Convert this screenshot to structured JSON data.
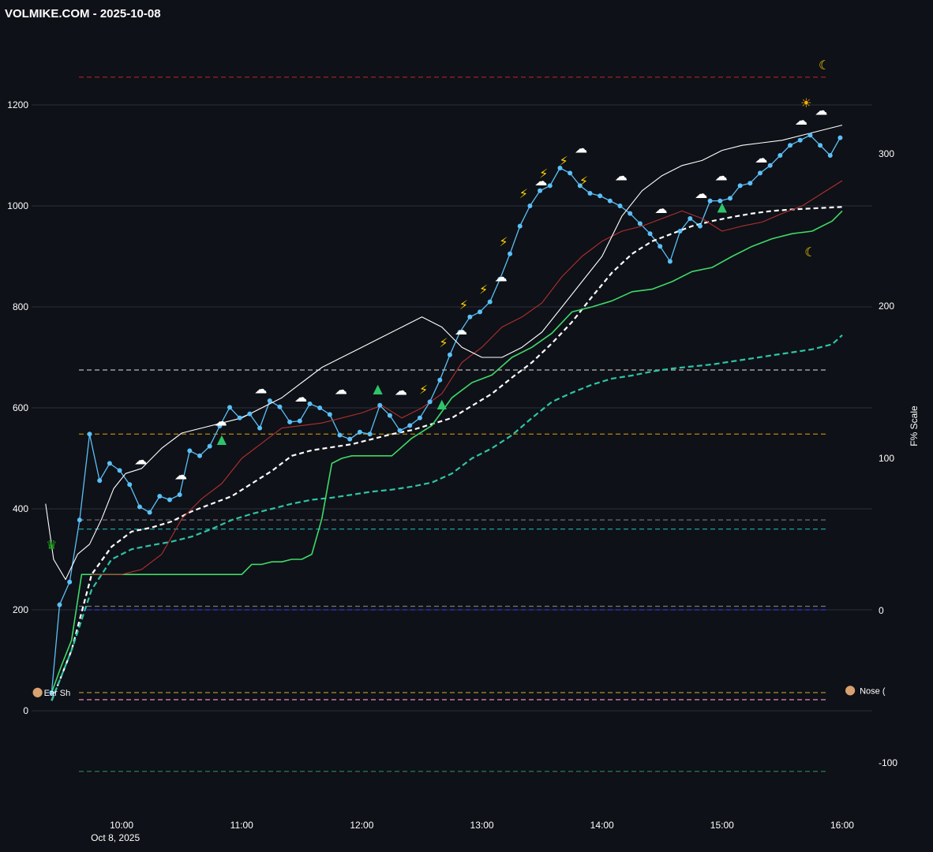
{
  "header": {
    "title": "VOLMIKE.COM  - 2025-10-08"
  },
  "chart_data": {
    "type": "line",
    "title": "VOLMIKE.COM  - 2025-10-08",
    "xlabel": "",
    "ylabel": "",
    "y2label": "F% Scale",
    "ylim": [
      -130,
      1300
    ],
    "y2lim": [
      -115,
      335
    ],
    "x_range_minutes": [
      555,
      975
    ],
    "xticks": [
      {
        "t": 600,
        "label": "10:00",
        "sub": "Oct 8, 2025"
      },
      {
        "t": 660,
        "label": "11:00"
      },
      {
        "t": 720,
        "label": "12:00"
      },
      {
        "t": 780,
        "label": "13:00"
      },
      {
        "t": 840,
        "label": "14:00"
      },
      {
        "t": 900,
        "label": "15:00"
      },
      {
        "t": 960,
        "label": "16:00"
      }
    ],
    "yticks": [
      0,
      200,
      400,
      600,
      800,
      1000,
      1200
    ],
    "y2ticks": [
      -100,
      0,
      100,
      200,
      300
    ],
    "grid": true,
    "hlines": [
      {
        "y": 1255,
        "color": "#b22222"
      },
      {
        "y": 675,
        "color": "#bbbbbb"
      },
      {
        "y": 548,
        "color": "#b8860b"
      },
      {
        "y": 378,
        "color": "#777777"
      },
      {
        "y": 360,
        "color": "#20a0a0"
      },
      {
        "y": 207,
        "color": "#777777"
      },
      {
        "y": 200,
        "color": "#3333cc"
      },
      {
        "y": 36,
        "color": "#b8a030"
      },
      {
        "y": 22,
        "color": "#ff99cc"
      },
      {
        "y": -120,
        "color": "#2e8b57"
      }
    ],
    "series": [
      {
        "color": "#5bc0f8",
        "x": [
          565,
          569,
          574,
          579,
          584,
          589,
          594,
          599,
          604,
          609,
          614,
          619,
          624,
          629,
          634,
          639,
          644,
          649,
          654,
          659,
          664,
          669,
          674,
          679,
          684,
          689,
          694,
          699,
          704,
          709,
          714,
          719,
          724,
          729,
          734,
          739,
          744,
          749,
          754,
          759,
          764,
          769,
          774,
          779,
          784,
          789,
          794,
          799,
          804,
          809,
          814,
          819,
          824,
          829,
          834,
          839,
          844,
          849,
          854,
          859,
          864,
          869,
          874,
          879,
          884,
          889,
          894,
          899,
          904,
          909,
          914,
          919,
          924,
          929,
          934,
          939,
          944,
          949,
          954,
          959
        ],
        "y": [
          36,
          210,
          255,
          378,
          548,
          456,
          490,
          476,
          448,
          404,
          393,
          425,
          418,
          428,
          515,
          505,
          524,
          564,
          601,
          580,
          588,
          560,
          614,
          602,
          572,
          574,
          608,
          600,
          587,
          546,
          538,
          552,
          548,
          605,
          585,
          555,
          565,
          580,
          612,
          655,
          705,
          750,
          780,
          790,
          810,
          855,
          905,
          960,
          1000,
          1030,
          1040,
          1075,
          1065,
          1040,
          1025,
          1020,
          1010,
          1000,
          985,
          965,
          945,
          920,
          890,
          950,
          975,
          960,
          1010,
          1010,
          1015,
          1040,
          1045,
          1065,
          1080,
          1100,
          1120,
          1130,
          1140,
          1120,
          1100,
          1135
        ]
      },
      {
        "color": "#ffffff",
        "dash": "6,4",
        "width": 2.2,
        "x": [
          565,
          575,
          585,
          595,
          605,
          615,
          625,
          635,
          645,
          655,
          665,
          675,
          685,
          695,
          705,
          715,
          725,
          735,
          745,
          755,
          765,
          775,
          785,
          795,
          805,
          815,
          825,
          835,
          845,
          855,
          865,
          875,
          885,
          895,
          905,
          915,
          925,
          935,
          945,
          955,
          960
        ],
        "y": [
          20,
          120,
          270,
          325,
          355,
          363,
          375,
          395,
          410,
          425,
          450,
          475,
          505,
          516,
          522,
          528,
          538,
          548,
          556,
          568,
          580,
          604,
          628,
          660,
          690,
          728,
          770,
          820,
          868,
          905,
          930,
          945,
          960,
          970,
          978,
          985,
          990,
          993,
          995,
          997,
          998
        ]
      },
      {
        "color": "#2ec4a6",
        "dash": "7,4",
        "width": 2.2,
        "x": [
          565,
          575,
          585,
          595,
          605,
          615,
          625,
          635,
          645,
          655,
          665,
          675,
          685,
          695,
          705,
          715,
          725,
          735,
          745,
          755,
          765,
          775,
          785,
          795,
          805,
          815,
          825,
          835,
          845,
          855,
          865,
          875,
          885,
          895,
          905,
          915,
          925,
          935,
          945,
          955,
          960
        ],
        "y": [
          20,
          120,
          240,
          300,
          320,
          328,
          335,
          345,
          360,
          378,
          390,
          400,
          410,
          418,
          422,
          428,
          434,
          438,
          444,
          452,
          470,
          500,
          520,
          546,
          580,
          612,
          630,
          646,
          658,
          664,
          672,
          678,
          682,
          686,
          692,
          698,
          704,
          710,
          716,
          726,
          744
        ]
      },
      {
        "color": "#3fd96a",
        "width": 1.6,
        "x": [
          565,
          570,
          575,
          580,
          585,
          590,
          600,
          610,
          620,
          630,
          640,
          650,
          655,
          660,
          665,
          670,
          675,
          680,
          685,
          690,
          695,
          700,
          705,
          710,
          715,
          720,
          725,
          735,
          745,
          755,
          765,
          775,
          785,
          795,
          805,
          815,
          825,
          835,
          845,
          855,
          865,
          875,
          885,
          895,
          905,
          915,
          925,
          935,
          945,
          955,
          960
        ],
        "y": [
          36,
          90,
          140,
          270,
          270,
          270,
          270,
          270,
          270,
          270,
          270,
          270,
          270,
          270,
          290,
          290,
          295,
          295,
          300,
          300,
          310,
          380,
          490,
          500,
          505,
          505,
          505,
          505,
          540,
          565,
          620,
          650,
          665,
          700,
          720,
          748,
          790,
          800,
          812,
          830,
          835,
          850,
          870,
          878,
          900,
          920,
          935,
          945,
          950,
          970,
          990
        ]
      },
      {
        "color": "#b03030",
        "width": 1.1,
        "x": [
          585,
          600,
          610,
          620,
          630,
          640,
          650,
          660,
          670,
          680,
          690,
          700,
          710,
          720,
          730,
          740,
          750,
          760,
          770,
          780,
          790,
          800,
          810,
          820,
          830,
          840,
          850,
          860,
          870,
          880,
          890,
          900,
          910,
          920,
          930,
          940,
          950,
          960
        ],
        "y": [
          270,
          270,
          280,
          310,
          380,
          420,
          450,
          500,
          530,
          560,
          565,
          570,
          580,
          590,
          605,
          580,
          600,
          628,
          690,
          720,
          760,
          780,
          808,
          860,
          900,
          930,
          950,
          960,
          975,
          990,
          975,
          950,
          960,
          968,
          985,
          1000,
          1025,
          1050
        ]
      },
      {
        "color": "#ffffff",
        "width": 1.1,
        "x": [
          562,
          566,
          572,
          578,
          584,
          590,
          596,
          602,
          610,
          620,
          630,
          640,
          650,
          660,
          670,
          680,
          690,
          700,
          710,
          720,
          730,
          740,
          750,
          760,
          770,
          780,
          790,
          800,
          810,
          820,
          830,
          840,
          850,
          860,
          870,
          880,
          890,
          900,
          910,
          920,
          930,
          940,
          950,
          960
        ],
        "y": [
          410,
          300,
          260,
          310,
          330,
          380,
          440,
          470,
          480,
          520,
          550,
          560,
          570,
          580,
          600,
          620,
          650,
          680,
          700,
          720,
          740,
          760,
          780,
          760,
          720,
          700,
          700,
          720,
          750,
          800,
          850,
          900,
          980,
          1030,
          1060,
          1080,
          1090,
          1110,
          1120,
          1125,
          1130,
          1140,
          1150,
          1160
        ]
      }
    ],
    "annotations": [
      {
        "text": "Ear Sh",
        "t": 558,
        "y": 36
      },
      {
        "text": "Nose (",
        "t": 964,
        "y": 40
      }
    ],
    "emoji_marks": [
      {
        "glyph": "☁",
        "color": "#ffffff"
      },
      {
        "glyph": "⚡",
        "color": "#ffd200"
      },
      {
        "glyph": "☀",
        "color": "#ffb000"
      },
      {
        "glyph": "☾",
        "color": "#ffd200"
      },
      {
        "glyph": "♛",
        "color": "#18a018"
      },
      {
        "glyph": "▲",
        "color": "#2ec46a"
      }
    ]
  }
}
